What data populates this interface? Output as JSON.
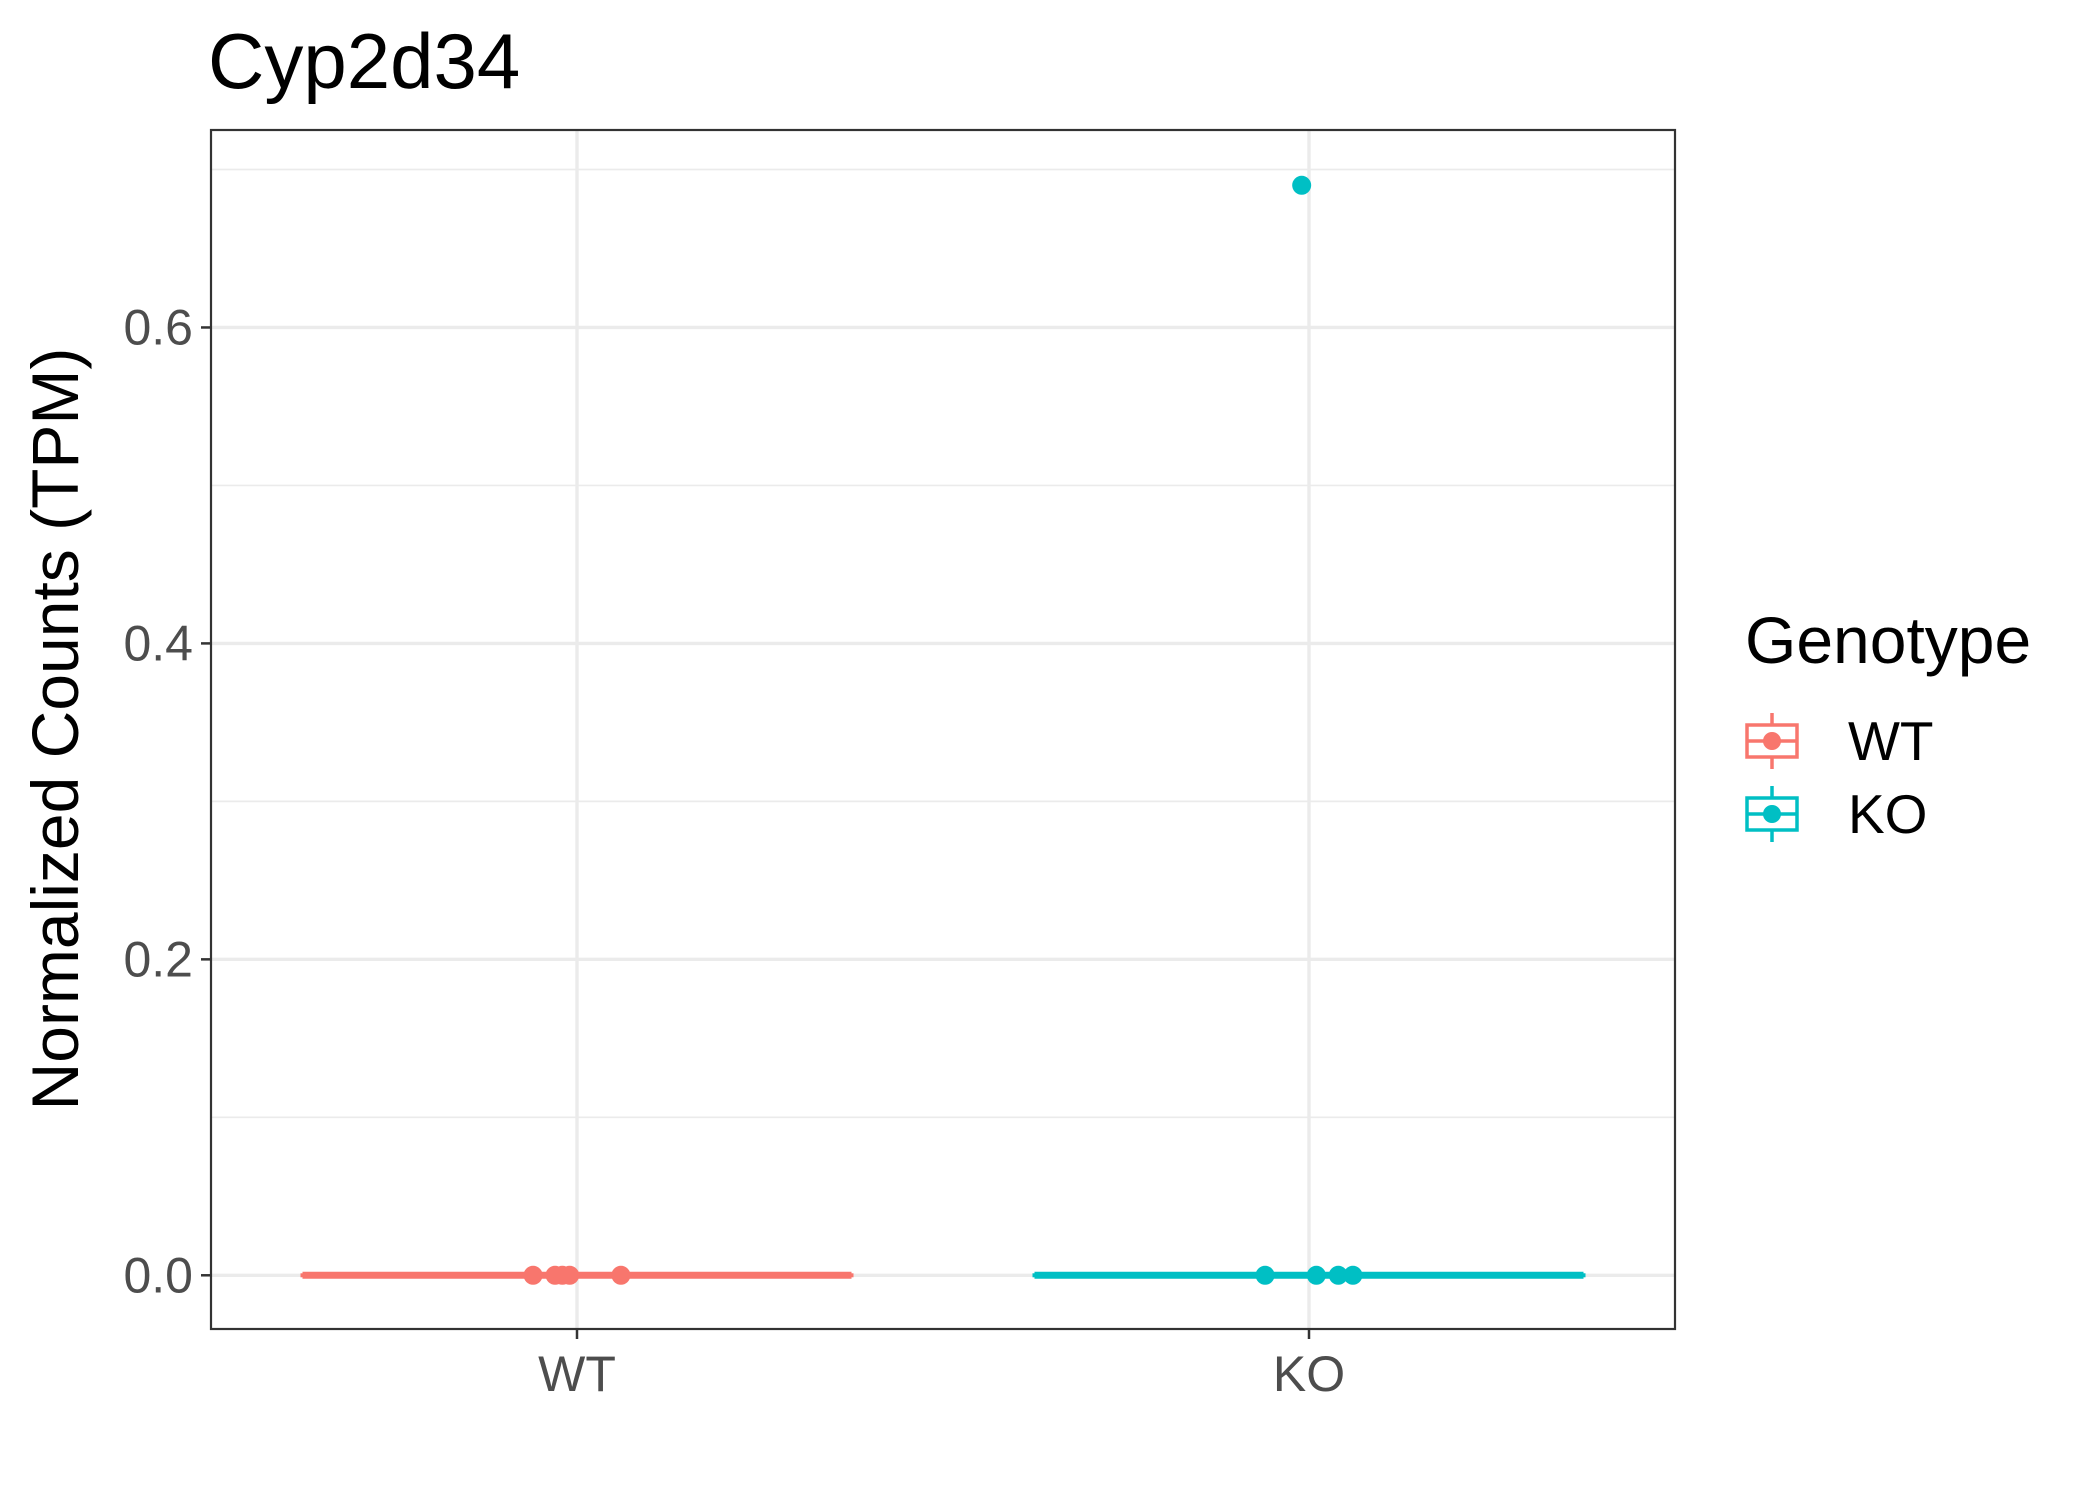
{
  "chart_data": {
    "type": "boxplot",
    "title": "Cyp2d34",
    "xlabel": "",
    "ylabel": "Normalized Counts (TPM)",
    "categories": [
      "WT",
      "KO"
    ],
    "ylim": [
      -0.034,
      0.725
    ],
    "yticks": [
      0.0,
      0.2,
      0.4,
      0.6
    ],
    "ytick_labels": [
      "0.0",
      "0.2",
      "0.4",
      "0.6"
    ],
    "grid": true,
    "legend": {
      "title": "Genotype",
      "position": "right",
      "entries": [
        {
          "label": "WT",
          "color": "#F8766D"
        },
        {
          "label": "KO",
          "color": "#00BFC4"
        }
      ]
    },
    "series": [
      {
        "name": "WT",
        "color": "#F8766D",
        "box": {
          "min": 0,
          "q1": 0,
          "median": 0,
          "q3": 0,
          "max": 0
        },
        "points": [
          {
            "x_jitter": -0.06,
            "y": 0
          },
          {
            "x_jitter": -0.03,
            "y": 0
          },
          {
            "x_jitter": -0.02,
            "y": 0
          },
          {
            "x_jitter": -0.01,
            "y": 0
          },
          {
            "x_jitter": 0.06,
            "y": 0
          }
        ]
      },
      {
        "name": "KO",
        "color": "#00BFC4",
        "box": {
          "min": 0,
          "q1": 0,
          "median": 0,
          "q3": 0,
          "max": 0
        },
        "points": [
          {
            "x_jitter": -0.06,
            "y": 0
          },
          {
            "x_jitter": 0.01,
            "y": 0
          },
          {
            "x_jitter": 0.04,
            "y": 0
          },
          {
            "x_jitter": 0.06,
            "y": 0
          },
          {
            "x_jitter": -0.01,
            "y": 0.69
          }
        ]
      }
    ]
  }
}
